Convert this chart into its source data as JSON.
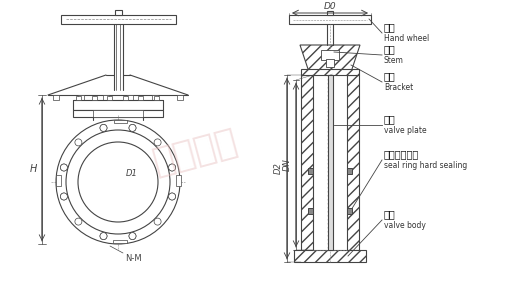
{
  "bg_color": "#ffffff",
  "line_color": "#444444",
  "labels": {
    "handwheel_cn": "手轮",
    "handwheel_en": "Hand wheel",
    "stem_cn": "阀杆",
    "stem_en": "Stem",
    "bracket_cn": "支架",
    "bracket_en": "Bracket",
    "valve_plate_cn": "阀板",
    "valve_plate_en": "valve plate",
    "seal_cn": "密封圈硬密封",
    "seal_en": "seal ring hard sealing",
    "valve_body_cn": "阀体",
    "valve_body_en": "valve body"
  },
  "watermark": "川沪阀门"
}
